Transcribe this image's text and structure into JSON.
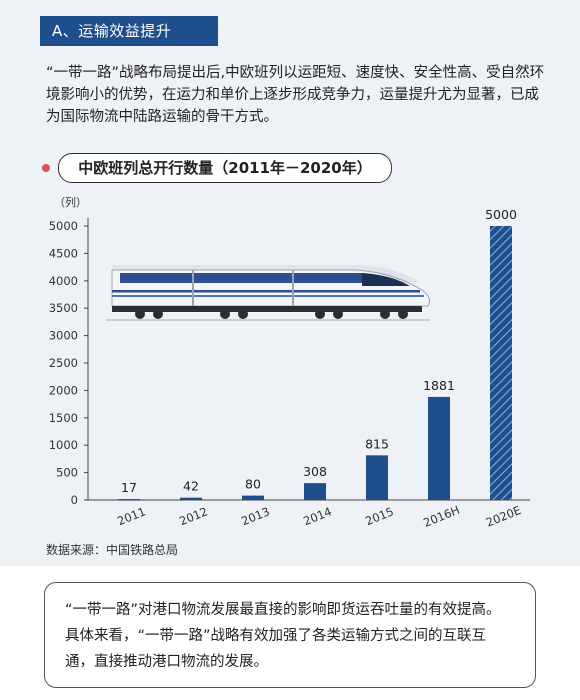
{
  "section_tag": "A、运输效益提升",
  "intro": "“一带一路”战略布局提出后,中欧班列以运距短、速度快、安全性高、受自然环境影响小的优势，在运力和单价上逐步形成竞争力，运量提升尤为显著，已成为国际物流中陆路运输的骨干方式。",
  "source": "数据来源：中国铁路总局",
  "note": "“一带一路”对港口物流发展最直接的影响即货运吞吐量的有效提高。具体来看，“一带一路”战略有效加强了各类运输方式之间的互联互通，直接推动港口物流的发展。",
  "colors": {
    "bar": "#1f4e8c",
    "tag": "#1f4e8c",
    "dot": "#d9534f"
  },
  "chart_data": {
    "type": "bar",
    "title": "中欧班列总开行数量（2011年－2020年）",
    "ylabel": "（列）",
    "ylim": [
      0,
      5000
    ],
    "yticks": [
      0,
      500,
      1000,
      1500,
      2000,
      2500,
      3000,
      3500,
      4000,
      4500,
      5000
    ],
    "categories": [
      "2011",
      "2012",
      "2013",
      "2014",
      "2015",
      "2016H",
      "2020E"
    ],
    "values": [
      17,
      42,
      80,
      308,
      815,
      1881,
      5000
    ],
    "hatched": [
      false,
      false,
      false,
      false,
      false,
      false,
      true
    ],
    "grid": false,
    "legend": false
  }
}
